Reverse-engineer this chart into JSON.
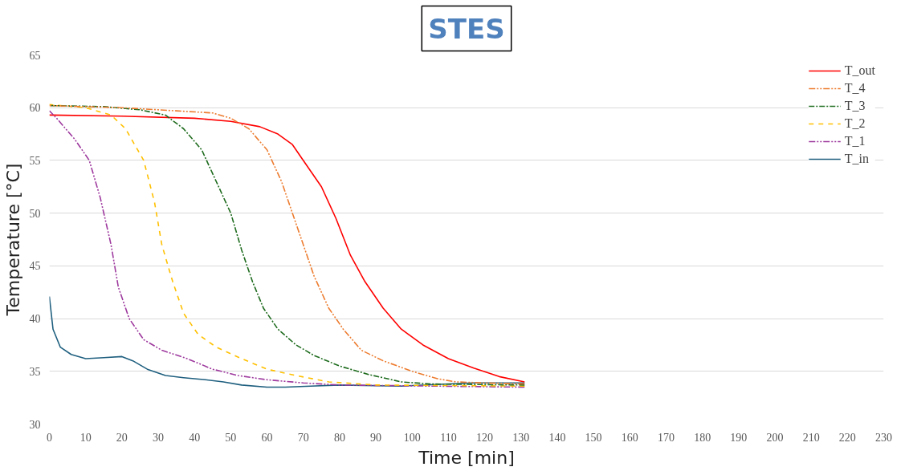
{
  "chart_data": {
    "type": "line",
    "title": "STES",
    "xlabel": "Time [min]",
    "ylabel": "Temperature [°C]",
    "xlim": [
      0,
      230
    ],
    "xticks": [
      0,
      10,
      20,
      30,
      40,
      50,
      60,
      70,
      80,
      90,
      100,
      110,
      120,
      130,
      140,
      150,
      160,
      170,
      180,
      190,
      200,
      210,
      220,
      230
    ],
    "ylim": [
      30,
      65
    ],
    "yticks": [
      30,
      35,
      40,
      45,
      50,
      55,
      60,
      65
    ],
    "grid": "y",
    "legend": "top right",
    "marker": "none",
    "series": [
      {
        "name": "T_out",
        "color": "#ff0000",
        "line_style": "solid",
        "x": [
          0,
          20,
          40,
          50,
          58,
          63,
          67,
          70,
          75,
          79,
          83,
          87,
          92,
          97,
          103,
          110,
          117,
          124,
          131
        ],
        "values": [
          59.3,
          59.2,
          59.0,
          58.7,
          58.2,
          57.5,
          56.5,
          55.0,
          52.5,
          49.5,
          46.0,
          43.5,
          41.0,
          39.0,
          37.5,
          36.2,
          35.3,
          34.5,
          34.0
        ]
      },
      {
        "name": "T_4",
        "color": "#ed7d31",
        "line_style": "dashdotdot",
        "x": [
          0,
          20,
          35,
          45,
          50,
          55,
          60,
          64,
          67,
          70,
          73,
          77,
          81,
          86,
          92,
          100,
          107,
          112,
          120,
          131
        ],
        "values": [
          60.2,
          60.0,
          59.7,
          59.5,
          59.0,
          58.0,
          56.0,
          53.0,
          50.0,
          47.0,
          44.0,
          41.0,
          39.0,
          37.0,
          36.0,
          35.0,
          34.3,
          34.0,
          33.9,
          33.8
        ]
      },
      {
        "name": "T_3",
        "color": "#1e6b1e",
        "line_style": "dashdot",
        "x": [
          0,
          15,
          25,
          32,
          37,
          42,
          46,
          50,
          53,
          56,
          59,
          63,
          68,
          73,
          80,
          88,
          97,
          105,
          131
        ],
        "values": [
          60.2,
          60.1,
          59.8,
          59.3,
          58.0,
          56.0,
          53.0,
          50.0,
          46.5,
          43.5,
          41.0,
          39.0,
          37.5,
          36.5,
          35.5,
          34.7,
          34.0,
          33.8,
          33.7
        ]
      },
      {
        "name": "T_2",
        "color": "#ffc000",
        "line_style": "dashed",
        "x": [
          0,
          10,
          17,
          21,
          26,
          29,
          31,
          34,
          37,
          41,
          46,
          53,
          60,
          68,
          77,
          90,
          131
        ],
        "values": [
          60.3,
          60.0,
          59.3,
          58.0,
          55.0,
          51.0,
          47.0,
          43.5,
          40.5,
          38.5,
          37.3,
          36.2,
          35.2,
          34.6,
          34.0,
          33.7,
          33.6
        ]
      },
      {
        "name": "T_1",
        "color": "#9e3a9e",
        "line_style": "dashdotdot",
        "x": [
          0,
          2,
          7,
          11,
          14,
          17,
          19,
          22,
          26,
          31,
          38,
          45,
          52,
          60,
          70,
          80,
          131
        ],
        "values": [
          59.7,
          59.0,
          57.0,
          55.0,
          51.5,
          47.0,
          43.0,
          40.0,
          38.0,
          37.0,
          36.2,
          35.2,
          34.6,
          34.2,
          33.9,
          33.7,
          33.5
        ]
      },
      {
        "name": "T_in",
        "color": "#1f5f7f",
        "line_style": "solid",
        "x": [
          0,
          1,
          3,
          6,
          10,
          15,
          20,
          23,
          27,
          32,
          37,
          43,
          48,
          53,
          60,
          65,
          72,
          80,
          97,
          110,
          117,
          131
        ],
        "values": [
          42.1,
          39.0,
          37.3,
          36.6,
          36.2,
          36.3,
          36.4,
          36.0,
          35.2,
          34.6,
          34.4,
          34.2,
          34.0,
          33.7,
          33.5,
          33.5,
          33.6,
          33.7,
          33.6,
          33.8,
          33.9,
          33.9
        ]
      }
    ]
  }
}
